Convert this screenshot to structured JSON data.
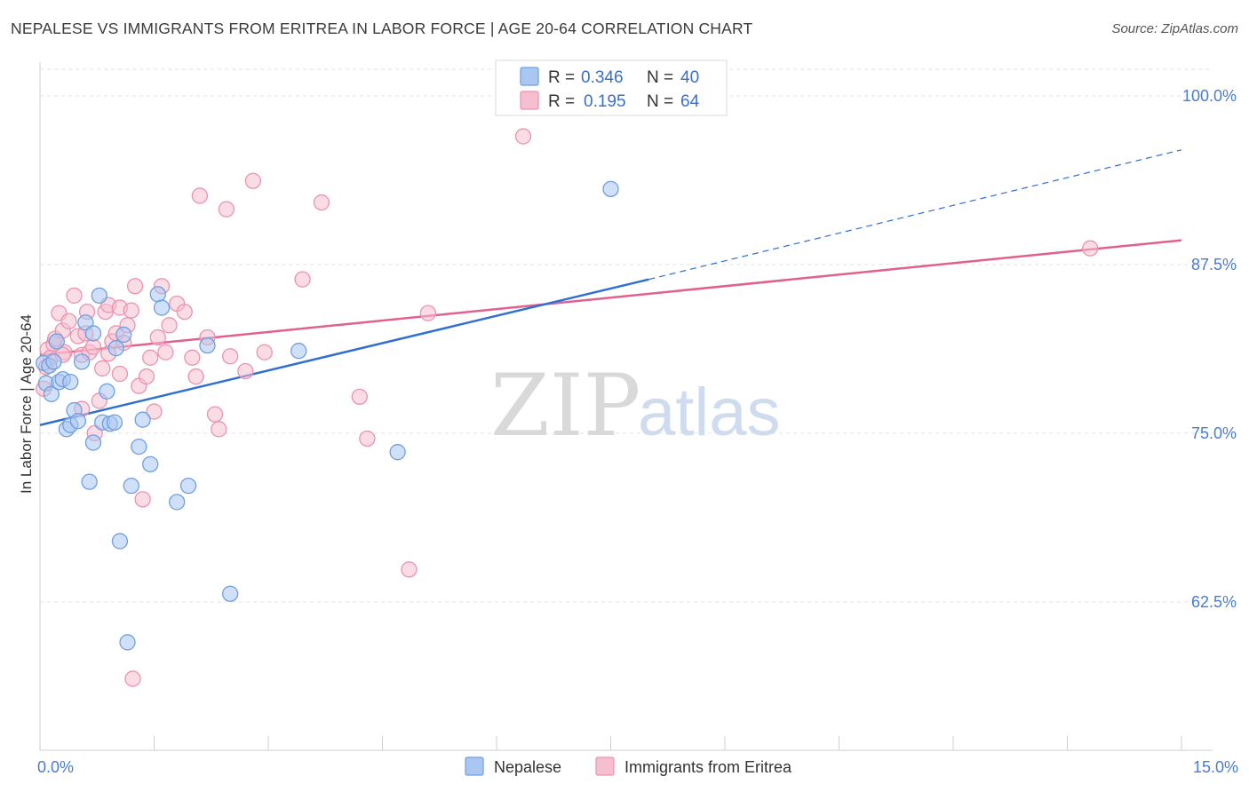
{
  "header": {
    "title": "NEPALESE VS IMMIGRANTS FROM ERITREA IN LABOR FORCE | AGE 20-64 CORRELATION CHART",
    "source": "Source: ZipAtlas.com"
  },
  "watermark": {
    "zip": "ZIP",
    "atlas": "atlas"
  },
  "legend": {
    "rows": [
      {
        "r_label": "R =",
        "r_value": "0.346",
        "n_label": "N =",
        "n_value": "40",
        "color": "#a9c7f2"
      },
      {
        "r_label": "R =",
        "r_value": "0.195",
        "n_label": "N =",
        "n_value": "64",
        "color": "#f6b8cb"
      }
    ]
  },
  "colors": {
    "nepalese_fill": "#a9c7f2",
    "nepalese_stroke": "#6f9fe0",
    "nepalese_line": "#2f6fd0",
    "eritrea_fill": "#f6bfd0",
    "eritrea_stroke": "#ea93b0",
    "eritrea_line": "#e0608f",
    "grid": "#e3e3e3",
    "tick_label": "#4a7bd0"
  },
  "chart_data": {
    "type": "scatter",
    "title": "NEPALESE VS IMMIGRANTS FROM ERITREA IN LABOR FORCE | AGE 20-64 CORRELATION CHART",
    "xlabel": "",
    "ylabel": "In Labor Force | Age 20-64",
    "xlim": [
      0,
      15
    ],
    "ylim": [
      51.5,
      102.5
    ],
    "x_tick_labels": [
      "0.0%",
      "15.0%"
    ],
    "x_tick_values": [
      0,
      15
    ],
    "y_tick_labels": [
      "62.5%",
      "75.0%",
      "87.5%",
      "100.0%"
    ],
    "y_tick_values": [
      62.5,
      75.0,
      87.5,
      100.0
    ],
    "grid": "horizontal",
    "legend_position": "top-center",
    "series": [
      {
        "name": "Nepalese",
        "r": 0.346,
        "n": 40,
        "points": [
          [
            0.05,
            80.2
          ],
          [
            0.08,
            78.7
          ],
          [
            0.12,
            80.0
          ],
          [
            0.15,
            77.9
          ],
          [
            0.18,
            80.3
          ],
          [
            0.22,
            81.8
          ],
          [
            0.25,
            78.8
          ],
          [
            0.3,
            79.0
          ],
          [
            0.35,
            75.3
          ],
          [
            0.4,
            75.6
          ],
          [
            0.45,
            76.7
          ],
          [
            0.5,
            75.9
          ],
          [
            0.55,
            80.3
          ],
          [
            0.6,
            83.2
          ],
          [
            0.65,
            71.4
          ],
          [
            0.7,
            74.3
          ],
          [
            0.78,
            85.2
          ],
          [
            0.82,
            75.8
          ],
          [
            0.88,
            78.1
          ],
          [
            0.92,
            75.7
          ],
          [
            0.98,
            75.8
          ],
          [
            1.05,
            67.0
          ],
          [
            1.1,
            82.3
          ],
          [
            1.15,
            59.5
          ],
          [
            1.2,
            71.1
          ],
          [
            1.3,
            74.0
          ],
          [
            1.35,
            76.0
          ],
          [
            1.45,
            72.7
          ],
          [
            1.55,
            85.3
          ],
          [
            1.6,
            84.3
          ],
          [
            1.8,
            69.9
          ],
          [
            1.95,
            71.1
          ],
          [
            2.2,
            81.5
          ],
          [
            2.5,
            63.1
          ],
          [
            3.4,
            81.1
          ],
          [
            4.7,
            73.6
          ],
          [
            7.5,
            93.1
          ],
          [
            0.7,
            82.4
          ],
          [
            1.0,
            81.3
          ],
          [
            0.4,
            78.8
          ]
        ],
        "trend": {
          "x0": 0,
          "y0": 75.6,
          "x1": 8.0,
          "y1": 86.4,
          "dashed_to_x": 15,
          "dashed_to_y": 96.0
        }
      },
      {
        "name": "Immigrants from Eritrea",
        "r": 0.195,
        "n": 64,
        "points": [
          [
            0.05,
            78.3
          ],
          [
            0.08,
            79.9
          ],
          [
            0.1,
            81.2
          ],
          [
            0.14,
            80.6
          ],
          [
            0.18,
            81.6
          ],
          [
            0.2,
            82.0
          ],
          [
            0.25,
            83.9
          ],
          [
            0.3,
            82.6
          ],
          [
            0.32,
            81.0
          ],
          [
            0.38,
            83.3
          ],
          [
            0.45,
            85.2
          ],
          [
            0.5,
            82.2
          ],
          [
            0.55,
            80.8
          ],
          [
            0.6,
            82.4
          ],
          [
            0.65,
            81.0
          ],
          [
            0.7,
            81.4
          ],
          [
            0.72,
            75.0
          ],
          [
            0.78,
            77.4
          ],
          [
            0.82,
            79.8
          ],
          [
            0.86,
            84.0
          ],
          [
            0.9,
            84.5
          ],
          [
            0.95,
            81.8
          ],
          [
            1.0,
            82.4
          ],
          [
            1.05,
            84.3
          ],
          [
            1.1,
            81.7
          ],
          [
            1.15,
            83.0
          ],
          [
            1.2,
            84.1
          ],
          [
            1.25,
            85.9
          ],
          [
            1.3,
            78.5
          ],
          [
            1.35,
            70.1
          ],
          [
            1.4,
            79.2
          ],
          [
            1.45,
            80.6
          ],
          [
            1.5,
            76.6
          ],
          [
            1.55,
            82.1
          ],
          [
            1.6,
            85.9
          ],
          [
            1.7,
            83.0
          ],
          [
            1.8,
            84.6
          ],
          [
            1.9,
            84.0
          ],
          [
            2.0,
            80.6
          ],
          [
            2.05,
            79.2
          ],
          [
            2.1,
            92.6
          ],
          [
            2.2,
            82.1
          ],
          [
            2.3,
            76.4
          ],
          [
            2.35,
            75.3
          ],
          [
            2.45,
            91.6
          ],
          [
            2.7,
            79.6
          ],
          [
            2.8,
            93.7
          ],
          [
            2.95,
            81.0
          ],
          [
            3.45,
            86.4
          ],
          [
            3.7,
            92.1
          ],
          [
            4.2,
            77.7
          ],
          [
            4.3,
            74.6
          ],
          [
            4.85,
            64.9
          ],
          [
            5.1,
            83.9
          ],
          [
            6.35,
            97.0
          ],
          [
            1.22,
            56.8
          ],
          [
            0.55,
            76.8
          ],
          [
            0.3,
            80.8
          ],
          [
            0.9,
            80.9
          ],
          [
            1.05,
            79.4
          ],
          [
            13.8,
            88.7
          ],
          [
            0.62,
            84.0
          ],
          [
            1.65,
            81.0
          ],
          [
            2.5,
            80.7
          ]
        ],
        "trend": {
          "x0": 0,
          "y0": 80.8,
          "x1": 15,
          "y1": 89.3
        }
      }
    ]
  }
}
